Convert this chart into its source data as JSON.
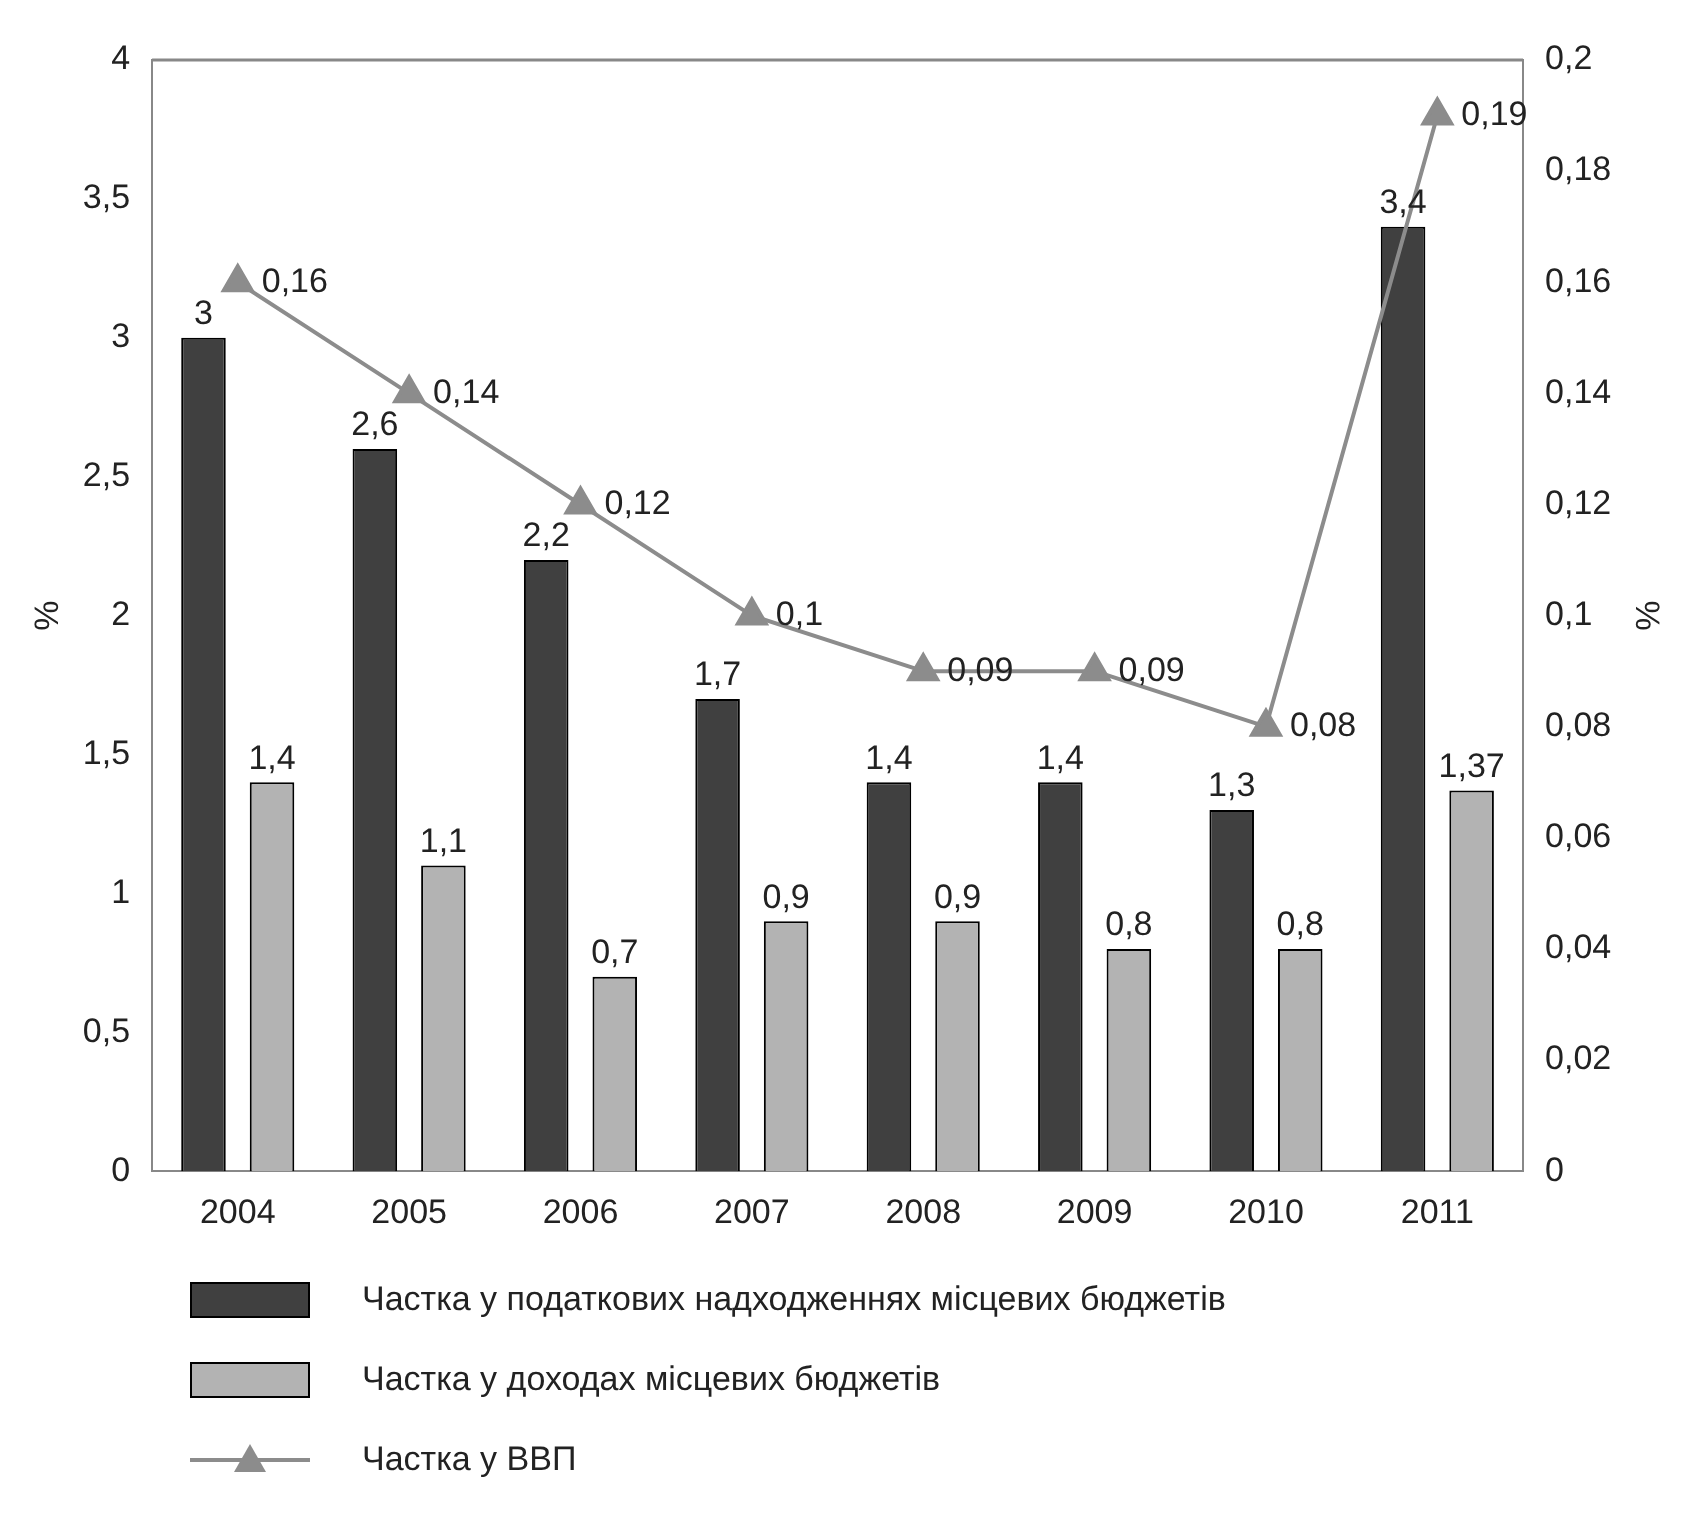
{
  "chart_data": {
    "type": "bar",
    "ylabel": "%",
    "y2label": "%",
    "categories": [
      "2004",
      "2005",
      "2006",
      "2007",
      "2008",
      "2009",
      "2010",
      "2011"
    ],
    "series": [
      {
        "name": "Частка у податкових надходженнях місцевих бюджетів",
        "color": "#404040",
        "values": [
          3,
          2.6,
          2.2,
          1.7,
          1.4,
          1.4,
          1.3,
          3.4
        ],
        "value_labels": [
          "3",
          "2,6",
          "2,2",
          "1,7",
          "1,4",
          "1,4",
          "1,3",
          "3,4"
        ]
      },
      {
        "name": "Частка у доходах місцевих бюджетів",
        "color": "#b3b3b3",
        "values": [
          1.4,
          1.1,
          0.7,
          0.9,
          0.9,
          0.8,
          0.8,
          1.37
        ],
        "value_labels": [
          "1,4",
          "1,1",
          "0,7",
          "0,9",
          "0,9",
          "0,8",
          "0,8",
          "1,37"
        ]
      },
      {
        "name": "Частка у ВВП",
        "type": "line",
        "axis": "y2",
        "color": "#8c8c8c",
        "marker": "triangle",
        "values": [
          0.16,
          0.14,
          0.12,
          0.1,
          0.09,
          0.09,
          0.08,
          0.19
        ],
        "value_labels": [
          "0,16",
          "0,14",
          "0,12",
          "0,1",
          "0,09",
          "0,09",
          "0,08",
          "0,19"
        ]
      }
    ],
    "ylim": [
      0,
      4
    ],
    "yticks": [
      0,
      {
        "value": 0.5,
        "label": "0,5"
      },
      1,
      {
        "value": 1.5,
        "label": "1,5"
      },
      2,
      {
        "value": 2.5,
        "label": "2,5"
      },
      3,
      {
        "value": 3.5,
        "label": "3,5"
      },
      4
    ],
    "y2lim": [
      0,
      0.2
    ],
    "y2ticks": [
      0,
      {
        "value": 0.02,
        "label": "0,02"
      },
      {
        "value": 0.04,
        "label": "0,04"
      },
      {
        "value": 0.06,
        "label": "0,06"
      },
      {
        "value": 0.08,
        "label": "0,08"
      },
      {
        "value": 0.1,
        "label": "0,1"
      },
      {
        "value": 0.12,
        "label": "0,12"
      },
      {
        "value": 0.14,
        "label": "0,14"
      },
      {
        "value": 0.16,
        "label": "0,16"
      },
      {
        "value": 0.18,
        "label": "0,18"
      },
      {
        "value": 0.2,
        "label": "0,2"
      }
    ],
    "grid": false,
    "legend": "bottom"
  }
}
